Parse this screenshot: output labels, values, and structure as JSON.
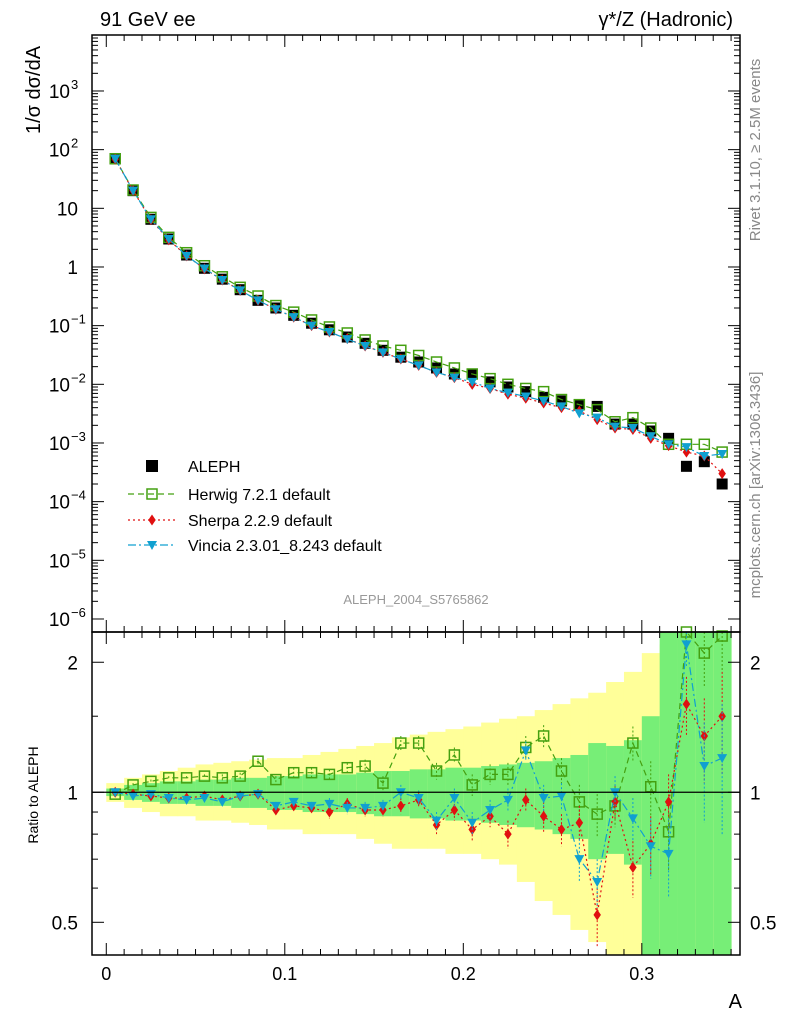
{
  "header": {
    "left_label": "91 GeV ee",
    "right_label": "γ*/Z (Hadronic)"
  },
  "side_labels": {
    "rivet": "Rivet 3.1.10, ≥ 2.5M events",
    "mcplots": "mcplots.cern.ch [arXiv:1306.3436]"
  },
  "watermark": "ALEPH_2004_S5765862",
  "chart_data": [
    {
      "type": "scatter",
      "scale": "log",
      "ylabel": "1/σ  dσ/dA",
      "ylim": [
        6e-07,
        9000
      ],
      "xlim": [
        -0.008,
        0.355
      ],
      "yticks": [
        {
          "v": 1e-06,
          "b": "10",
          "e": "−6"
        },
        {
          "v": 1e-05,
          "b": "10",
          "e": "−5"
        },
        {
          "v": 0.0001,
          "b": "10",
          "e": "−4"
        },
        {
          "v": 0.001,
          "b": "10",
          "e": "−3"
        },
        {
          "v": 0.01,
          "b": "10",
          "e": "−2"
        },
        {
          "v": 0.1,
          "b": "10",
          "e": "−1"
        },
        {
          "v": 1,
          "b": "1",
          "e": ""
        },
        {
          "v": 10,
          "b": "10",
          "e": ""
        },
        {
          "v": 100,
          "b": "10",
          "e": "2"
        },
        {
          "v": 1000,
          "b": "10",
          "e": "3"
        }
      ],
      "x": [
        0.005,
        0.015,
        0.025,
        0.035,
        0.045,
        0.055,
        0.065,
        0.075,
        0.085,
        0.095,
        0.105,
        0.115,
        0.125,
        0.135,
        0.145,
        0.155,
        0.165,
        0.175,
        0.185,
        0.195,
        0.205,
        0.215,
        0.225,
        0.235,
        0.245,
        0.255,
        0.265,
        0.275,
        0.285,
        0.295,
        0.305,
        0.315,
        0.325,
        0.335,
        0.345
      ],
      "series": [
        {
          "name": "ALEPH",
          "color": "#000000",
          "marker": "square-filled",
          "values": [
            70,
            20,
            6.5,
            3.0,
            1.6,
            0.95,
            0.62,
            0.41,
            0.27,
            0.2,
            0.15,
            0.11,
            0.085,
            0.064,
            0.05,
            0.038,
            0.029,
            0.024,
            0.019,
            0.015,
            0.015,
            0.011,
            0.009,
            0.0075,
            0.006,
            0.0052,
            0.0045,
            0.0042,
            0.0021,
            0.0021,
            0.0016,
            0.0012,
            0.0004,
            0.00048,
            0.0002
          ]
        },
        {
          "name": "Herwig 7.2.1 default",
          "color": "#44a010",
          "marker": "square-open",
          "dash": "6,4",
          "values": [
            70,
            20.5,
            7.0,
            3.2,
            1.75,
            1.05,
            0.68,
            0.45,
            0.32,
            0.22,
            0.17,
            0.125,
            0.095,
            0.075,
            0.057,
            0.045,
            0.038,
            0.031,
            0.024,
            0.019,
            0.015,
            0.0125,
            0.01,
            0.0085,
            0.0075,
            0.0055,
            0.0045,
            0.0037,
            0.0023,
            0.0027,
            0.0018,
            0.00095,
            0.00095,
            0.00095,
            0.0007
          ]
        },
        {
          "name": "Sherpa 2.2.9 default",
          "color": "#e01010",
          "marker": "diamond-filled",
          "dash": "2,3",
          "values": [
            69,
            20,
            6.4,
            2.9,
            1.55,
            0.93,
            0.6,
            0.4,
            0.27,
            0.19,
            0.14,
            0.1,
            0.078,
            0.06,
            0.045,
            0.035,
            0.027,
            0.021,
            0.016,
            0.013,
            0.01,
            0.0085,
            0.0068,
            0.0058,
            0.0048,
            0.004,
            0.0035,
            0.0025,
            0.0018,
            0.0017,
            0.0012,
            0.0009,
            0.0007,
            0.0006,
            0.0003
          ]
        },
        {
          "name": "Vincia 2.3.01_8.243 default",
          "color": "#10a0d0",
          "marker": "triangle-down-filled",
          "dash": "8,3,2,3",
          "values": [
            70,
            20,
            6.5,
            3.0,
            1.55,
            0.94,
            0.6,
            0.4,
            0.27,
            0.19,
            0.14,
            0.1,
            0.078,
            0.059,
            0.045,
            0.035,
            0.027,
            0.021,
            0.016,
            0.013,
            0.011,
            0.0085,
            0.0072,
            0.0062,
            0.0052,
            0.0042,
            0.0032,
            0.0027,
            0.0019,
            0.0018,
            0.0013,
            0.00095,
            0.00085,
            0.0006,
            0.00065
          ]
        }
      ]
    },
    {
      "type": "scatter",
      "scale": "log",
      "ylabel": "Ratio to ALEPH",
      "xlabel": "A",
      "ylim": [
        0.42,
        2.35
      ],
      "xlim": [
        -0.008,
        0.355
      ],
      "yticks": [
        0.5,
        1,
        2
      ],
      "ytick_labels": [
        "0.5",
        "1",
        "2"
      ],
      "xticks": [
        0,
        0.1,
        0.2,
        0.3
      ],
      "xtick_labels": [
        "0",
        "0.1",
        "0.2",
        "0.3"
      ],
      "x": [
        0.005,
        0.015,
        0.025,
        0.035,
        0.045,
        0.055,
        0.065,
        0.075,
        0.085,
        0.095,
        0.105,
        0.115,
        0.125,
        0.135,
        0.145,
        0.155,
        0.165,
        0.175,
        0.185,
        0.195,
        0.205,
        0.215,
        0.225,
        0.235,
        0.245,
        0.255,
        0.265,
        0.275,
        0.285,
        0.295,
        0.305,
        0.315,
        0.325,
        0.335,
        0.345
      ],
      "band_stat_lo": [
        0.98,
        0.96,
        0.95,
        0.94,
        0.94,
        0.93,
        0.93,
        0.92,
        0.92,
        0.91,
        0.91,
        0.9,
        0.9,
        0.9,
        0.89,
        0.88,
        0.88,
        0.87,
        0.87,
        0.86,
        0.86,
        0.85,
        0.84,
        0.83,
        0.82,
        0.8,
        0.78,
        0.7,
        0.72,
        0.68,
        0.42,
        0.42,
        0.42,
        0.42,
        0.42
      ],
      "band_stat_hi": [
        1.02,
        1.04,
        1.05,
        1.06,
        1.06,
        1.07,
        1.07,
        1.08,
        1.08,
        1.09,
        1.09,
        1.1,
        1.1,
        1.1,
        1.11,
        1.12,
        1.12,
        1.13,
        1.13,
        1.14,
        1.14,
        1.15,
        1.16,
        1.17,
        1.18,
        1.2,
        1.22,
        1.3,
        1.28,
        1.32,
        1.5,
        2.35,
        2.35,
        2.35,
        2.35
      ],
      "band_tot_lo": [
        0.95,
        0.92,
        0.9,
        0.88,
        0.88,
        0.86,
        0.86,
        0.85,
        0.84,
        0.82,
        0.82,
        0.8,
        0.8,
        0.8,
        0.78,
        0.76,
        0.74,
        0.74,
        0.74,
        0.72,
        0.72,
        0.7,
        0.68,
        0.62,
        0.56,
        0.52,
        0.48,
        0.45,
        0.42,
        0.42,
        0.42,
        0.42,
        0.42,
        0.42,
        0.42
      ],
      "band_tot_hi": [
        1.05,
        1.08,
        1.1,
        1.12,
        1.14,
        1.16,
        1.17,
        1.18,
        1.19,
        1.2,
        1.2,
        1.22,
        1.24,
        1.26,
        1.28,
        1.3,
        1.34,
        1.36,
        1.38,
        1.4,
        1.42,
        1.45,
        1.48,
        1.5,
        1.55,
        1.6,
        1.65,
        1.7,
        1.8,
        1.9,
        2.1,
        2.2,
        2.35,
        2.35,
        2.35
      ],
      "series": [
        {
          "name": "Herwig 7.2.1 default",
          "color": "#44a010",
          "values": [
            0.99,
            1.04,
            1.06,
            1.08,
            1.08,
            1.09,
            1.08,
            1.09,
            1.18,
            1.07,
            1.11,
            1.11,
            1.1,
            1.14,
            1.15,
            1.05,
            1.3,
            1.3,
            1.12,
            1.22,
            1.04,
            1.1,
            1.1,
            1.27,
            1.35,
            1.12,
            0.95,
            0.89,
            0.93,
            1.3,
            1.03,
            0.81,
            2.35,
            2.1,
            2.3
          ],
          "err": [
            0.01,
            0.01,
            0.01,
            0.01,
            0.01,
            0.01,
            0.02,
            0.02,
            0.02,
            0.02,
            0.03,
            0.03,
            0.03,
            0.03,
            0.04,
            0.04,
            0.05,
            0.05,
            0.05,
            0.05,
            0.06,
            0.06,
            0.07,
            0.08,
            0.08,
            0.08,
            0.09,
            0.1,
            0.1,
            0.12,
            0.15,
            0.15,
            0.3,
            0.35,
            0.4
          ]
        },
        {
          "name": "Sherpa 2.2.9 default",
          "color": "#e01010",
          "values": [
            1.0,
            0.99,
            0.98,
            0.97,
            0.97,
            0.98,
            0.96,
            0.98,
            0.99,
            0.91,
            0.93,
            0.92,
            0.9,
            0.94,
            0.91,
            0.91,
            0.93,
            0.96,
            0.84,
            0.91,
            0.82,
            0.88,
            0.8,
            0.96,
            0.88,
            0.82,
            0.85,
            0.52,
            0.95,
            0.67,
            0.76,
            0.95,
            1.6,
            1.35,
            1.5
          ],
          "err": [
            0.01,
            0.01,
            0.01,
            0.01,
            0.01,
            0.01,
            0.02,
            0.02,
            0.02,
            0.02,
            0.02,
            0.02,
            0.03,
            0.03,
            0.03,
            0.03,
            0.04,
            0.04,
            0.04,
            0.05,
            0.05,
            0.05,
            0.06,
            0.06,
            0.07,
            0.07,
            0.08,
            0.08,
            0.09,
            0.1,
            0.12,
            0.15,
            0.25,
            0.3,
            0.4
          ]
        },
        {
          "name": "Vincia 2.3.01_8.243 default",
          "color": "#10a0d0",
          "values": [
            1.0,
            0.98,
            0.99,
            0.97,
            0.96,
            0.97,
            0.95,
            0.98,
            0.99,
            0.93,
            0.95,
            0.93,
            0.94,
            0.92,
            0.92,
            0.93,
            1.0,
            0.97,
            0.86,
            0.97,
            0.85,
            0.91,
            0.96,
            1.25,
            0.97,
            0.98,
            0.7,
            0.62,
            1.0,
            0.87,
            0.75,
            0.72,
            2.2,
            1.15,
            1.2
          ],
          "err": [
            0.01,
            0.01,
            0.01,
            0.01,
            0.01,
            0.01,
            0.02,
            0.02,
            0.02,
            0.02,
            0.02,
            0.02,
            0.03,
            0.03,
            0.03,
            0.03,
            0.04,
            0.04,
            0.04,
            0.05,
            0.05,
            0.05,
            0.06,
            0.06,
            0.07,
            0.07,
            0.08,
            0.08,
            0.09,
            0.1,
            0.12,
            0.15,
            0.25,
            0.3,
            0.4
          ]
        }
      ]
    }
  ]
}
